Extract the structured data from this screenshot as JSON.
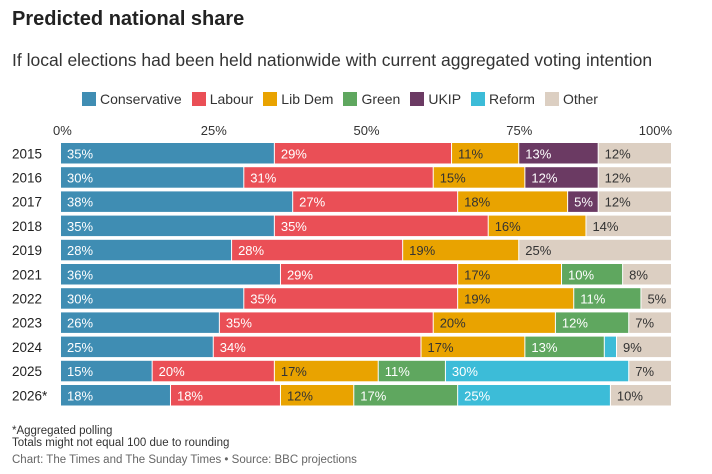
{
  "chart_data": {
    "type": "bar",
    "orientation": "horizontal",
    "stacked": true,
    "title": "Predicted national share",
    "subtitle": "If local elections had been held nationwide with current aggregated voting intention",
    "x_ticks": [
      "0%",
      "25%",
      "50%",
      "75%",
      "100%"
    ],
    "xlim": [
      0,
      100
    ],
    "categories": [
      "2015",
      "2016",
      "2017",
      "2018",
      "2019",
      "2021",
      "2022",
      "2023",
      "2024",
      "2025",
      "2026*"
    ],
    "series": [
      {
        "name": "Conservative",
        "color": "#3f8db3",
        "values": [
          35,
          30,
          38,
          35,
          28,
          36,
          30,
          26,
          25,
          15,
          18
        ]
      },
      {
        "name": "Labour",
        "color": "#ea4f56",
        "values": [
          29,
          31,
          27,
          35,
          28,
          29,
          35,
          35,
          34,
          20,
          18
        ]
      },
      {
        "name": "Lib Dem",
        "color": "#e9a300",
        "values": [
          11,
          15,
          18,
          16,
          19,
          17,
          19,
          20,
          17,
          17,
          12
        ]
      },
      {
        "name": "Green",
        "color": "#5fa75f",
        "values": [
          null,
          null,
          null,
          null,
          null,
          10,
          11,
          12,
          13,
          11,
          17
        ]
      },
      {
        "name": "UKIP",
        "color": "#6b3a63",
        "values": [
          13,
          12,
          5,
          null,
          null,
          null,
          null,
          null,
          null,
          null,
          null
        ]
      },
      {
        "name": "Reform",
        "color": "#3cbcd8",
        "values": [
          null,
          null,
          null,
          null,
          null,
          null,
          null,
          null,
          2,
          30,
          25
        ]
      },
      {
        "name": "Other",
        "color": "#dccfc2",
        "values": [
          12,
          12,
          12,
          14,
          25,
          8,
          5,
          7,
          9,
          7,
          10
        ]
      }
    ],
    "data_labels": [
      [
        "35%",
        "29%",
        "11%",
        "",
        "13%",
        "",
        "12%"
      ],
      [
        "30%",
        "31%",
        "15%",
        "",
        "12%",
        "",
        "12%"
      ],
      [
        "38%",
        "27%",
        "18%",
        "",
        "5%",
        "",
        "12%"
      ],
      [
        "35%",
        "35%",
        "16%",
        "",
        "",
        "",
        "14%"
      ],
      [
        "28%",
        "28%",
        "19%",
        "",
        "",
        "",
        "25%"
      ],
      [
        "36%",
        "29%",
        "17%",
        "10%",
        "",
        "",
        "8%"
      ],
      [
        "30%",
        "35%",
        "19%",
        "11%",
        "",
        "",
        "5%"
      ],
      [
        "26%",
        "35%",
        "20%",
        "12%",
        "",
        "",
        "7%"
      ],
      [
        "25%",
        "34%",
        "17%",
        "13%",
        "",
        "",
        "9%"
      ],
      [
        "15%",
        "20%",
        "17%",
        "11%",
        "",
        "30%",
        "7%"
      ],
      [
        "18%",
        "18%",
        "12%",
        "17%",
        "",
        "25%",
        "10%"
      ]
    ],
    "label_colors": [
      "#ffffff",
      "#ffffff",
      "#333333",
      "#ffffff",
      "#ffffff",
      "#ffffff",
      "#333333"
    ],
    "legend": "top"
  },
  "footnotes": [
    "*Aggregated polling",
    "Totals might not equal 100 due to rounding"
  ],
  "source": "Chart: The Times and The Sunday Times • Source: BBC projections"
}
